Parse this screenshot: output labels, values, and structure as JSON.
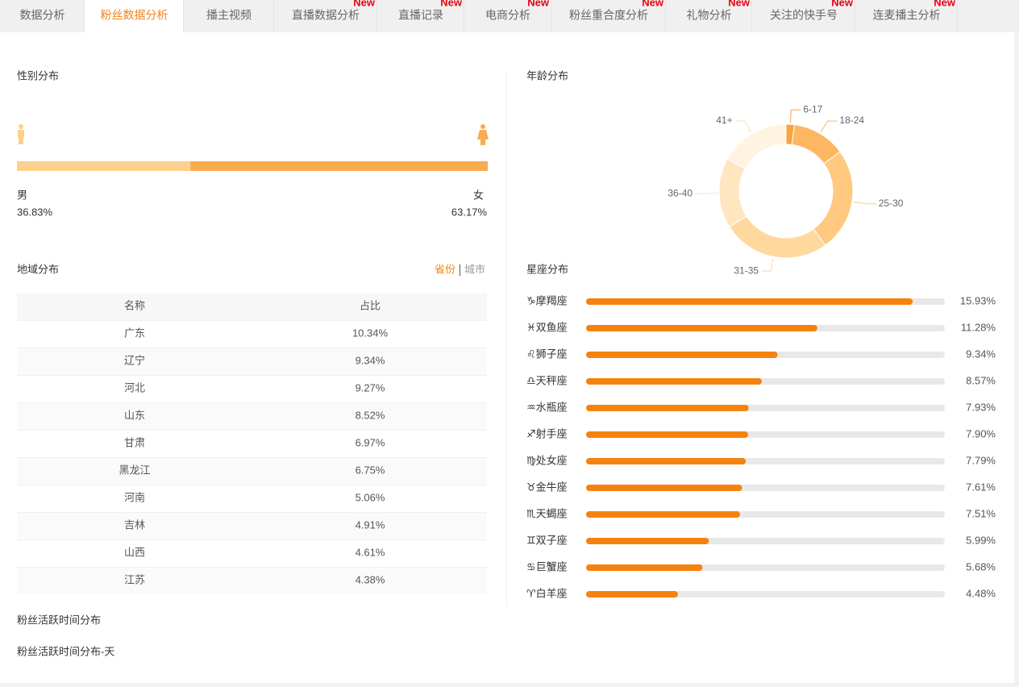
{
  "tabs": [
    {
      "label": "数据分析"
    },
    {
      "label": "粉丝数据分析",
      "active": true
    },
    {
      "label": "播主视频"
    },
    {
      "label": "直播数据分析",
      "badge": "New"
    },
    {
      "label": "直播记录",
      "badge": "New"
    },
    {
      "label": "电商分析",
      "badge": "New"
    },
    {
      "label": "粉丝重合度分析",
      "badge": "New"
    },
    {
      "label": "礼物分析",
      "badge": "New"
    },
    {
      "label": "关注的快手号",
      "badge": "New"
    },
    {
      "label": "连麦播主分析",
      "badge": "New"
    }
  ],
  "gender": {
    "title": "性别分布",
    "items": [
      {
        "name": "男",
        "value": 36.83,
        "label": "36.83%",
        "color": "#fdd08c"
      },
      {
        "name": "女",
        "value": 63.17,
        "label": "63.17%",
        "color": "#f8ac50"
      }
    ]
  },
  "region": {
    "title": "地域分布",
    "toggle": [
      "省份",
      "城市"
    ],
    "columns": [
      "名称",
      "占比"
    ],
    "rows": [
      [
        "广东",
        "10.34%"
      ],
      [
        "辽宁",
        "9.34%"
      ],
      [
        "河北",
        "9.27%"
      ],
      [
        "山东",
        "8.52%"
      ],
      [
        "甘肃",
        "6.97%"
      ],
      [
        "黑龙江",
        "6.75%"
      ],
      [
        "河南",
        "5.06%"
      ],
      [
        "吉林",
        "4.91%"
      ],
      [
        "山西",
        "4.61%"
      ],
      [
        "江苏",
        "4.38%"
      ]
    ]
  },
  "age": {
    "title": "年龄分布",
    "segments": [
      {
        "name": "6-17",
        "value": 2,
        "color": "#f7a444"
      },
      {
        "name": "18-24",
        "value": 13,
        "color": "#ffb660"
      },
      {
        "name": "25-30",
        "value": 25,
        "color": "#ffc97f"
      },
      {
        "name": "31-35",
        "value": 26,
        "color": "#ffd89e"
      },
      {
        "name": "36-40",
        "value": 17,
        "color": "#ffe6c1"
      },
      {
        "name": "41+",
        "value": 17,
        "color": "#fff4e2"
      }
    ]
  },
  "zodiac": {
    "title": "星座分布",
    "xlim": [
      0,
      17.5
    ],
    "color": "#f5820f",
    "track_color": "#e8e8e8",
    "items": [
      {
        "name": "♑摩羯座",
        "value": 15.93,
        "label": "15.93%"
      },
      {
        "name": "♓双鱼座",
        "value": 11.28,
        "label": "11.28%"
      },
      {
        "name": "♌狮子座",
        "value": 9.34,
        "label": "9.34%"
      },
      {
        "name": "♎天秤座",
        "value": 8.57,
        "label": "8.57%"
      },
      {
        "name": "♒水瓶座",
        "value": 7.93,
        "label": "7.93%"
      },
      {
        "name": "♐射手座",
        "value": 7.9,
        "label": "7.90%"
      },
      {
        "name": "♍处女座",
        "value": 7.79,
        "label": "7.79%"
      },
      {
        "name": "♉金牛座",
        "value": 7.61,
        "label": "7.61%"
      },
      {
        "name": "♏天蝎座",
        "value": 7.51,
        "label": "7.51%"
      },
      {
        "name": "♊双子座",
        "value": 5.99,
        "label": "5.99%"
      },
      {
        "name": "♋巨蟹座",
        "value": 5.68,
        "label": "5.68%"
      },
      {
        "name": "♈白羊座",
        "value": 4.48,
        "label": "4.48%"
      }
    ]
  },
  "activity": {
    "title": "粉丝活跃时间分布",
    "subtitle": "粉丝活跃时间分布-天"
  }
}
